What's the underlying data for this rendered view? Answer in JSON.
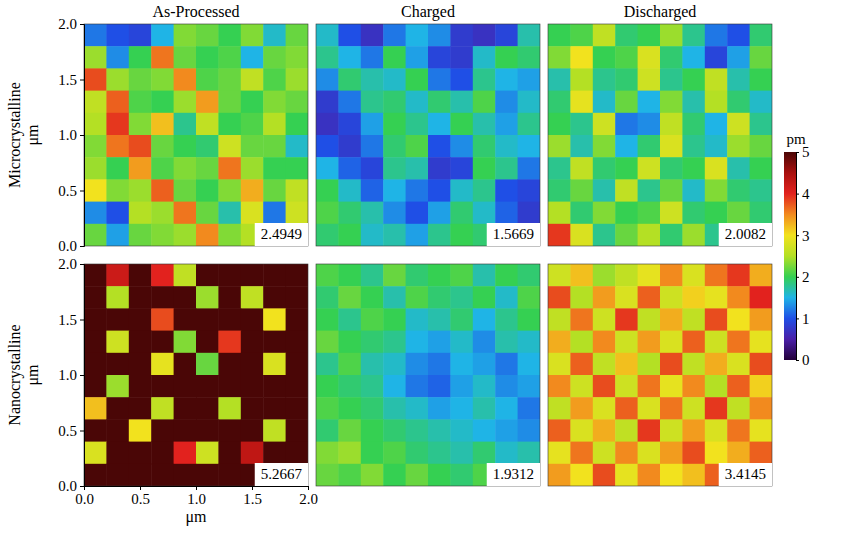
{
  "chart_data": [
    {
      "type": "heatmap",
      "title": "As-Processed",
      "ylabel": "Microcrystalline μm",
      "xlim": [
        0,
        2
      ],
      "ylim": [
        0,
        2
      ],
      "yticks": [
        {
          "value": 0,
          "label": "0.0"
        },
        {
          "value": 0.5,
          "label": "0.5"
        },
        {
          "value": 1,
          "label": "1.0"
        },
        {
          "value": 1.5,
          "label": "1.5"
        },
        {
          "value": 2,
          "label": "2.0"
        }
      ],
      "tick_labels": "y",
      "annotation": 2.4949,
      "cells": [
        [
          1.2,
          1.0,
          0.9,
          1.5,
          2.3,
          2.2,
          2.0,
          2.3,
          1.6,
          2.2
        ],
        [
          2.4,
          1.3,
          2.0,
          3.6,
          2.2,
          2.0,
          2.1,
          1.5,
          2.2,
          2.3
        ],
        [
          3.8,
          2.4,
          2.2,
          2.3,
          3.5,
          2.1,
          2.2,
          2.6,
          2.1,
          2.4
        ],
        [
          2.6,
          3.7,
          2.1,
          2.0,
          2.4,
          3.4,
          2.2,
          2.0,
          2.3,
          2.2
        ],
        [
          2.5,
          3.9,
          2.3,
          3.2,
          1.8,
          2.6,
          2.0,
          2.1,
          2.5,
          2.0
        ],
        [
          2.3,
          3.6,
          3.8,
          2.2,
          2.0,
          1.9,
          2.7,
          2.2,
          2.2,
          1.6
        ],
        [
          2.4,
          2.0,
          3.4,
          2.1,
          2.3,
          2.2,
          3.6,
          2.4,
          2.0,
          2.0
        ],
        [
          3.0,
          2.3,
          2.4,
          3.7,
          2.2,
          2.0,
          2.3,
          3.3,
          2.2,
          2.6
        ],
        [
          1.3,
          1.0,
          2.5,
          2.4,
          3.6,
          2.2,
          1.7,
          2.8,
          1.2,
          2.7
        ],
        [
          2.2,
          1.4,
          2.2,
          2.3,
          2.4,
          3.5,
          2.3,
          2.5,
          2.4,
          2.6
        ]
      ]
    },
    {
      "type": "heatmap",
      "title": "Charged",
      "xlim": [
        0,
        2
      ],
      "ylim": [
        0,
        2
      ],
      "tick_labels": false,
      "annotation": 1.5669,
      "cells": [
        [
          1.6,
          1.0,
          0.7,
          1.2,
          1.5,
          1.3,
          0.8,
          0.7,
          0.9,
          1.7
        ],
        [
          1.8,
          1.5,
          1.2,
          2.0,
          1.4,
          0.9,
          0.8,
          1.6,
          2.0,
          1.9
        ],
        [
          1.3,
          1.9,
          1.7,
          1.6,
          2.0,
          1.2,
          1.0,
          1.8,
          1.5,
          1.4
        ],
        [
          0.8,
          1.2,
          1.8,
          1.9,
          1.6,
          1.9,
          1.7,
          2.1,
          1.3,
          1.6
        ],
        [
          0.7,
          0.9,
          1.4,
          2.0,
          1.8,
          1.5,
          2.0,
          1.7,
          1.4,
          1.8
        ],
        [
          1.0,
          0.8,
          1.2,
          1.9,
          2.1,
          1.0,
          1.3,
          1.9,
          1.6,
          1.5
        ],
        [
          1.5,
          1.1,
          0.9,
          1.8,
          1.7,
          0.8,
          0.9,
          2.0,
          1.8,
          1.2
        ],
        [
          2.0,
          1.6,
          1.1,
          1.5,
          1.2,
          1.0,
          1.6,
          1.8,
          1.0,
          0.9
        ],
        [
          2.1,
          1.9,
          1.7,
          1.3,
          1.0,
          1.4,
          1.9,
          1.6,
          1.1,
          0.8
        ],
        [
          1.9,
          2.0,
          1.6,
          1.7,
          1.4,
          1.8,
          2.0,
          1.9,
          1.7,
          1.3
        ]
      ]
    },
    {
      "type": "heatmap",
      "title": "Discharged",
      "xlim": [
        0,
        2
      ],
      "ylim": [
        0,
        2
      ],
      "tick_labels": false,
      "annotation": 2.0082,
      "colorbar": {
        "range": [
          0,
          5
        ],
        "ticks": [
          0,
          1,
          2,
          3,
          4,
          5
        ],
        "label": "pm"
      },
      "cells": [
        [
          2.0,
          2.1,
          2.6,
          1.9,
          2.0,
          2.4,
          1.8,
          1.2,
          1.0,
          1.9
        ],
        [
          2.3,
          3.0,
          2.0,
          2.1,
          2.8,
          1.9,
          1.5,
          0.9,
          1.4,
          2.2
        ],
        [
          1.7,
          2.5,
          1.8,
          1.9,
          2.7,
          1.8,
          2.0,
          2.6,
          1.7,
          2.0
        ],
        [
          1.9,
          2.9,
          1.6,
          2.2,
          1.5,
          2.3,
          1.7,
          2.5,
          1.9,
          1.6
        ],
        [
          2.0,
          1.8,
          2.7,
          1.2,
          1.3,
          2.6,
          1.9,
          1.5,
          2.7,
          1.8
        ],
        [
          2.4,
          1.7,
          2.3,
          1.5,
          1.9,
          2.8,
          1.8,
          1.6,
          2.4,
          2.2
        ],
        [
          1.8,
          2.6,
          1.9,
          2.0,
          2.7,
          1.9,
          2.0,
          2.8,
          1.7,
          2.0
        ],
        [
          1.9,
          2.2,
          1.7,
          2.6,
          1.8,
          2.2,
          1.6,
          2.3,
          1.9,
          1.8
        ],
        [
          2.5,
          1.9,
          2.3,
          2.0,
          2.1,
          2.7,
          1.9,
          2.0,
          2.2,
          1.9
        ],
        [
          3.9,
          2.8,
          1.8,
          2.2,
          2.5,
          1.9,
          2.4,
          1.8,
          2.1,
          2.0
        ]
      ]
    },
    {
      "type": "heatmap",
      "ylabel": "Nanocrystalline μm",
      "xlabel": "μm",
      "xlim": [
        0,
        2
      ],
      "ylim": [
        0,
        2
      ],
      "xticks": [
        {
          "value": 0,
          "label": "0.0"
        },
        {
          "value": 0.5,
          "label": "0.5"
        },
        {
          "value": 1,
          "label": "1.0"
        },
        {
          "value": 1.5,
          "label": "1.5"
        },
        {
          "value": 2,
          "label": "2.0"
        }
      ],
      "yticks": [
        {
          "value": 0,
          "label": "0.0"
        },
        {
          "value": 0.5,
          "label": "0.5"
        },
        {
          "value": 1,
          "label": "1.0"
        },
        {
          "value": 1.5,
          "label": "1.5"
        },
        {
          "value": 2,
          "label": "2.0"
        }
      ],
      "annotation": 5.2667,
      "cells": [
        [
          5.6,
          4.2,
          5.8,
          4.0,
          2.6,
          5.5,
          5.9,
          5.3,
          5.7,
          6.0
        ],
        [
          5.9,
          2.5,
          5.4,
          5.6,
          5.8,
          2.4,
          5.5,
          2.6,
          5.2,
          5.8
        ],
        [
          5.3,
          5.7,
          5.9,
          3.8,
          5.5,
          5.6,
          5.8,
          5.4,
          3.0,
          5.5
        ],
        [
          5.8,
          2.7,
          5.6,
          5.7,
          2.3,
          5.4,
          3.9,
          5.7,
          5.6,
          5.9
        ],
        [
          5.5,
          5.3,
          5.8,
          2.9,
          5.6,
          2.2,
          5.5,
          5.8,
          2.8,
          5.4
        ],
        [
          5.7,
          2.4,
          5.5,
          5.9,
          5.3,
          5.7,
          5.9,
          5.5,
          5.6,
          5.8
        ],
        [
          3.2,
          5.6,
          5.8,
          2.6,
          5.4,
          5.7,
          2.5,
          5.3,
          5.9,
          5.5
        ],
        [
          5.6,
          5.9,
          3.0,
          5.5,
          5.8,
          5.6,
          5.7,
          5.8,
          2.6,
          5.7
        ],
        [
          2.8,
          5.5,
          5.7,
          5.4,
          4.0,
          2.7,
          5.5,
          4.3,
          5.6,
          5.9
        ],
        [
          5.8,
          5.6,
          5.4,
          5.9,
          5.7,
          5.8,
          5.3,
          5.6,
          5.5,
          5.7
        ]
      ]
    },
    {
      "type": "heatmap",
      "xlim": [
        0,
        2
      ],
      "ylim": [
        0,
        2
      ],
      "tick_labels": false,
      "annotation": 1.9312,
      "cells": [
        [
          2.1,
          2.0,
          1.8,
          2.2,
          1.9,
          2.0,
          2.1,
          1.7,
          2.0,
          1.9
        ],
        [
          1.9,
          2.2,
          2.0,
          1.7,
          2.1,
          1.9,
          1.8,
          2.0,
          1.6,
          2.1
        ],
        [
          2.0,
          1.8,
          2.1,
          2.0,
          1.6,
          1.7,
          1.9,
          1.5,
          1.8,
          2.0
        ],
        [
          2.2,
          2.0,
          1.9,
          1.8,
          1.5,
          1.4,
          1.6,
          1.3,
          1.7,
          1.6
        ],
        [
          1.8,
          2.1,
          1.7,
          1.6,
          1.3,
          1.2,
          1.5,
          1.4,
          1.2,
          1.5
        ],
        [
          2.0,
          1.9,
          1.8,
          1.5,
          1.2,
          1.1,
          1.4,
          1.6,
          1.3,
          1.4
        ],
        [
          2.1,
          2.0,
          1.9,
          1.7,
          1.6,
          1.4,
          1.5,
          1.7,
          1.5,
          1.2
        ],
        [
          1.9,
          2.2,
          2.0,
          1.9,
          1.8,
          1.7,
          1.6,
          1.5,
          1.4,
          1.3
        ],
        [
          2.3,
          2.4,
          2.0,
          2.1,
          1.9,
          1.8,
          1.7,
          1.9,
          1.6,
          1.7
        ],
        [
          2.2,
          2.1,
          2.3,
          2.0,
          2.2,
          2.0,
          1.9,
          2.1,
          2.0,
          1.8
        ]
      ]
    },
    {
      "type": "heatmap",
      "xlim": [
        0,
        2
      ],
      "ylim": [
        0,
        2
      ],
      "tick_labels": false,
      "annotation": 3.4145,
      "cells": [
        [
          2.7,
          3.2,
          2.4,
          2.6,
          2.9,
          3.5,
          2.8,
          3.6,
          3.9,
          3.3
        ],
        [
          3.8,
          2.5,
          3.4,
          2.8,
          3.7,
          2.7,
          3.1,
          2.9,
          3.5,
          4.0
        ],
        [
          2.6,
          3.6,
          2.7,
          3.9,
          2.6,
          3.3,
          2.6,
          3.8,
          3.0,
          3.4
        ],
        [
          3.3,
          2.5,
          3.5,
          2.7,
          3.4,
          2.8,
          3.7,
          2.7,
          3.6,
          2.9
        ],
        [
          2.8,
          3.7,
          2.6,
          3.2,
          2.5,
          3.8,
          2.6,
          3.3,
          2.8,
          3.8
        ],
        [
          3.5,
          2.7,
          3.8,
          2.7,
          3.6,
          2.9,
          3.5,
          2.5,
          3.7,
          3.1
        ],
        [
          2.6,
          3.4,
          2.8,
          3.7,
          2.8,
          3.6,
          2.7,
          3.9,
          2.6,
          3.5
        ],
        [
          3.7,
          2.8,
          3.3,
          2.6,
          3.9,
          2.7,
          3.4,
          2.8,
          3.6,
          2.9
        ],
        [
          2.9,
          3.6,
          2.7,
          3.5,
          2.8,
          3.4,
          3.8,
          3.0,
          3.3,
          3.7
        ],
        [
          3.4,
          3.0,
          3.8,
          2.9,
          3.5,
          3.0,
          3.2,
          3.7,
          2.9,
          3.4
        ]
      ]
    }
  ]
}
